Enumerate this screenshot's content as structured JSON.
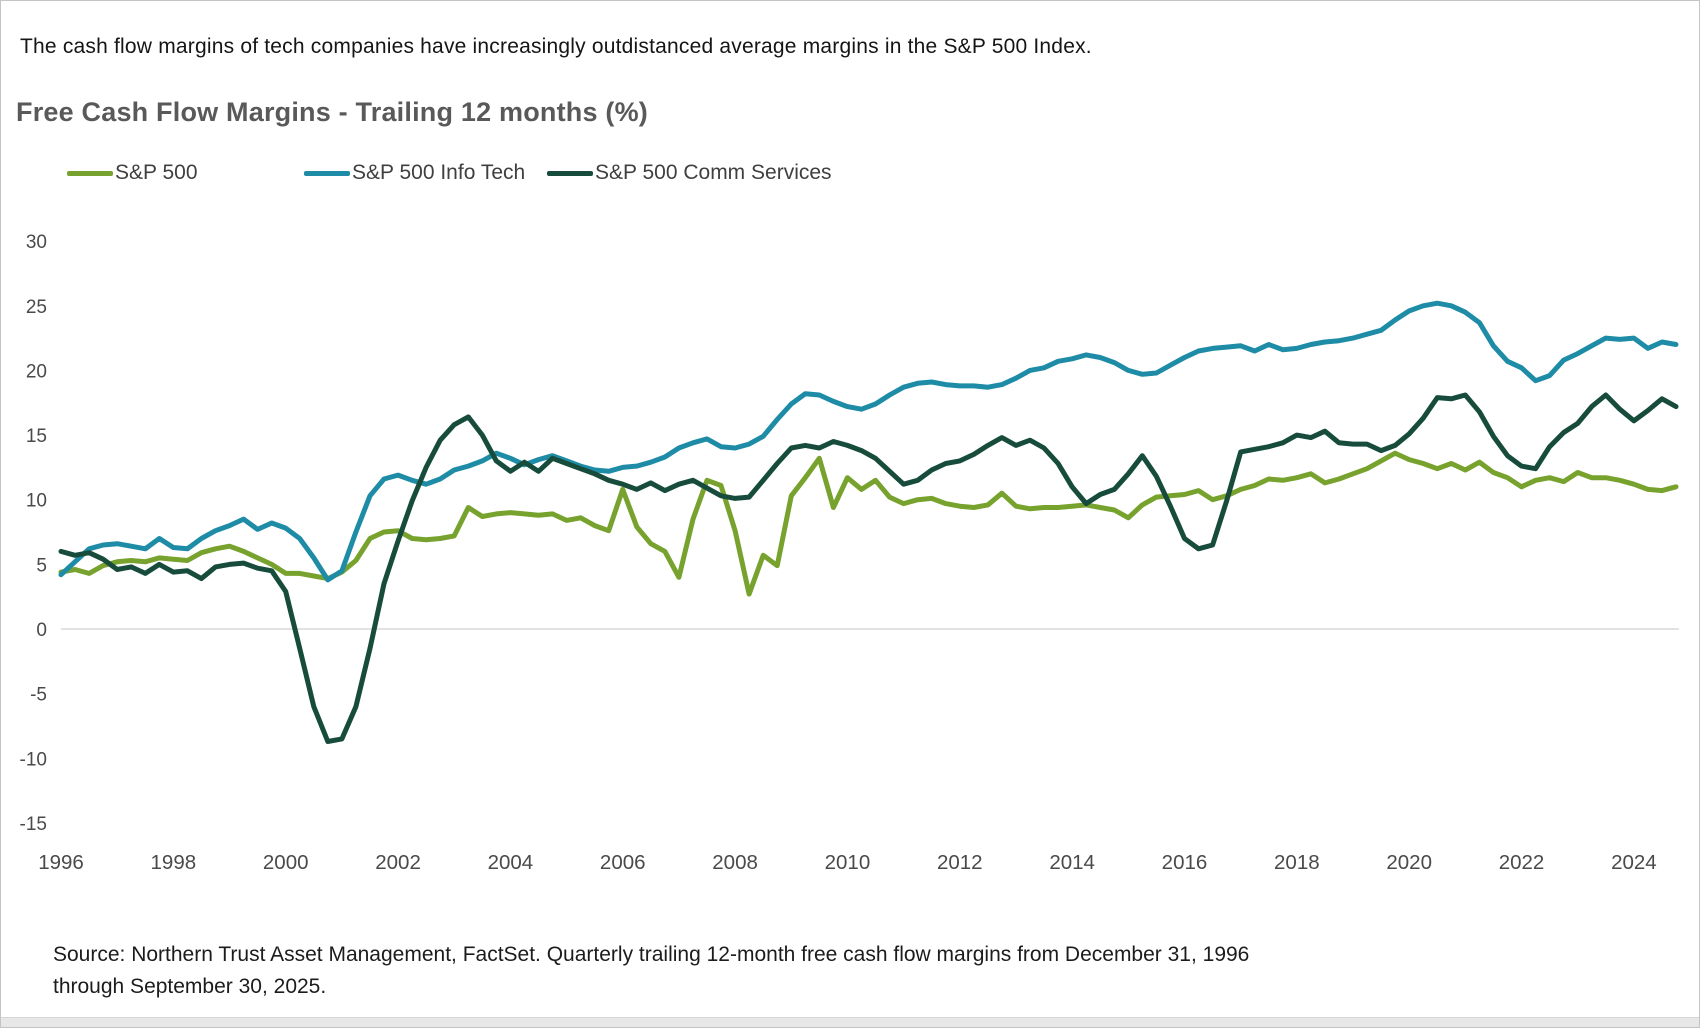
{
  "page": {
    "headline": "The cash flow margins of tech companies have increasingly outdistanced average margins in the S&P 500 Index.",
    "title": "Free Cash Flow Margins - Trailing 12 months (%)",
    "source_line1": "Source: Northern Trust Asset Management, FactSet. Quarterly trailing 12-month free cash flow margins from December 31, 1996",
    "source_line2": "through September 30, 2025."
  },
  "colors": {
    "sp500": "#78A22E",
    "info_tech": "#1E8CA6",
    "comm_services": "#174C3C",
    "zero_line": "#d8d8d8",
    "axis_text": "#4a4a4a"
  },
  "chart_data": {
    "type": "line",
    "title": "Free Cash Flow Margins - Trailing 12 months (%)",
    "x_start_year": 1996.96,
    "x_step_years": 0.25,
    "points_per_series": 116,
    "x_tick_years": [
      1996,
      1998,
      2000,
      2002,
      2004,
      2006,
      2008,
      2010,
      2012,
      2014,
      2016,
      2018,
      2020,
      2022,
      2024
    ],
    "y_ticks": [
      30,
      25,
      20,
      15,
      10,
      5,
      0,
      -5,
      -10,
      -15
    ],
    "ylim": [
      -15,
      30
    ],
    "grid": "zero-line-only",
    "legend_position": "top-left",
    "series": [
      {
        "name": "S&P 500",
        "color": "#78A22E",
        "values": [
          4.4,
          4.6,
          4.3,
          4.9,
          5.2,
          5.3,
          5.2,
          5.5,
          5.4,
          5.3,
          5.9,
          6.2,
          6.4,
          6.0,
          5.5,
          5.0,
          4.3,
          4.3,
          4.1,
          3.9,
          4.4,
          5.3,
          7.0,
          7.5,
          7.6,
          7.0,
          6.9,
          7.0,
          7.2,
          9.4,
          8.7,
          8.9,
          9.0,
          8.9,
          8.8,
          8.9,
          8.4,
          8.6,
          8.0,
          7.6,
          10.8,
          7.9,
          6.6,
          6.0,
          4.0,
          8.5,
          11.5,
          11.1,
          7.6,
          2.7,
          5.7,
          4.9,
          10.3,
          11.7,
          13.2,
          9.4,
          11.7,
          10.8,
          11.5,
          10.2,
          9.7,
          10.0,
          10.1,
          9.7,
          9.5,
          9.4,
          9.6,
          10.5,
          9.5,
          9.3,
          9.4,
          9.4,
          9.5,
          9.6,
          9.4,
          9.2,
          8.6,
          9.6,
          10.2,
          10.3,
          10.4,
          10.7,
          10.0,
          10.3,
          10.8,
          11.1,
          11.6,
          11.5,
          11.7,
          12.0,
          11.3,
          11.6,
          12.0,
          12.4,
          13.0,
          13.6,
          13.1,
          12.8,
          12.4,
          12.8,
          12.3,
          12.9,
          12.1,
          11.7,
          11.0,
          11.5,
          11.7,
          11.4,
          12.1,
          11.7,
          11.7,
          11.5,
          11.2,
          10.8,
          10.7,
          11.0
        ]
      },
      {
        "name": "S&P 500 Info Tech",
        "color": "#1E8CA6",
        "values": [
          4.2,
          5.2,
          6.2,
          6.5,
          6.6,
          6.4,
          6.2,
          7.0,
          6.3,
          6.2,
          7.0,
          7.6,
          8.0,
          8.5,
          7.7,
          8.2,
          7.8,
          7.0,
          5.5,
          3.8,
          4.5,
          7.5,
          10.3,
          11.6,
          11.9,
          11.5,
          11.2,
          11.6,
          12.3,
          12.6,
          13.0,
          13.6,
          13.2,
          12.7,
          13.1,
          13.4,
          13.0,
          12.6,
          12.3,
          12.2,
          12.5,
          12.6,
          12.9,
          13.3,
          14.0,
          14.4,
          14.7,
          14.1,
          14.0,
          14.3,
          14.9,
          16.2,
          17.4,
          18.2,
          18.1,
          17.6,
          17.2,
          17.0,
          17.4,
          18.1,
          18.7,
          19.0,
          19.1,
          18.9,
          18.8,
          18.8,
          18.7,
          18.9,
          19.4,
          20.0,
          20.2,
          20.7,
          20.9,
          21.2,
          21.0,
          20.6,
          20.0,
          19.7,
          19.8,
          20.4,
          21.0,
          21.5,
          21.7,
          21.8,
          21.9,
          21.5,
          22.0,
          21.6,
          21.7,
          22.0,
          22.2,
          22.3,
          22.5,
          22.8,
          23.1,
          23.9,
          24.6,
          25.0,
          25.2,
          25.0,
          24.5,
          23.7,
          21.9,
          20.7,
          20.2,
          19.2,
          19.6,
          20.8,
          21.3,
          21.9,
          22.5,
          22.4,
          22.5,
          21.7,
          22.2,
          22.0
        ]
      },
      {
        "name": "S&P 500 Comm Services",
        "color": "#174C3C",
        "values": [
          6.0,
          5.7,
          5.9,
          5.4,
          4.6,
          4.8,
          4.3,
          5.0,
          4.4,
          4.5,
          3.9,
          4.8,
          5.0,
          5.1,
          4.7,
          4.5,
          2.9,
          -1.5,
          -6.0,
          -8.7,
          -8.5,
          -6.0,
          -1.5,
          3.5,
          6.8,
          9.9,
          12.5,
          14.6,
          15.8,
          16.4,
          15.0,
          13.0,
          12.2,
          12.9,
          12.2,
          13.2,
          12.8,
          12.4,
          12.0,
          11.5,
          11.2,
          10.8,
          11.3,
          10.7,
          11.2,
          11.5,
          10.9,
          10.3,
          10.1,
          10.2,
          11.5,
          12.8,
          14.0,
          14.2,
          14.0,
          14.5,
          14.2,
          13.8,
          13.2,
          12.2,
          11.2,
          11.5,
          12.3,
          12.8,
          13.0,
          13.5,
          14.2,
          14.8,
          14.2,
          14.6,
          14.0,
          12.8,
          11.0,
          9.7,
          10.4,
          10.8,
          12.0,
          13.4,
          11.8,
          9.5,
          7.0,
          6.2,
          6.5,
          9.9,
          13.7,
          13.9,
          14.1,
          14.4,
          15.0,
          14.8,
          15.3,
          14.4,
          14.3,
          14.3,
          13.8,
          14.2,
          15.1,
          16.3,
          17.9,
          17.8,
          18.1,
          16.8,
          14.9,
          13.4,
          12.6,
          12.4,
          14.1,
          15.2,
          15.9,
          17.2,
          18.1,
          17.0,
          16.1,
          16.9,
          17.8,
          17.2
        ]
      }
    ]
  }
}
